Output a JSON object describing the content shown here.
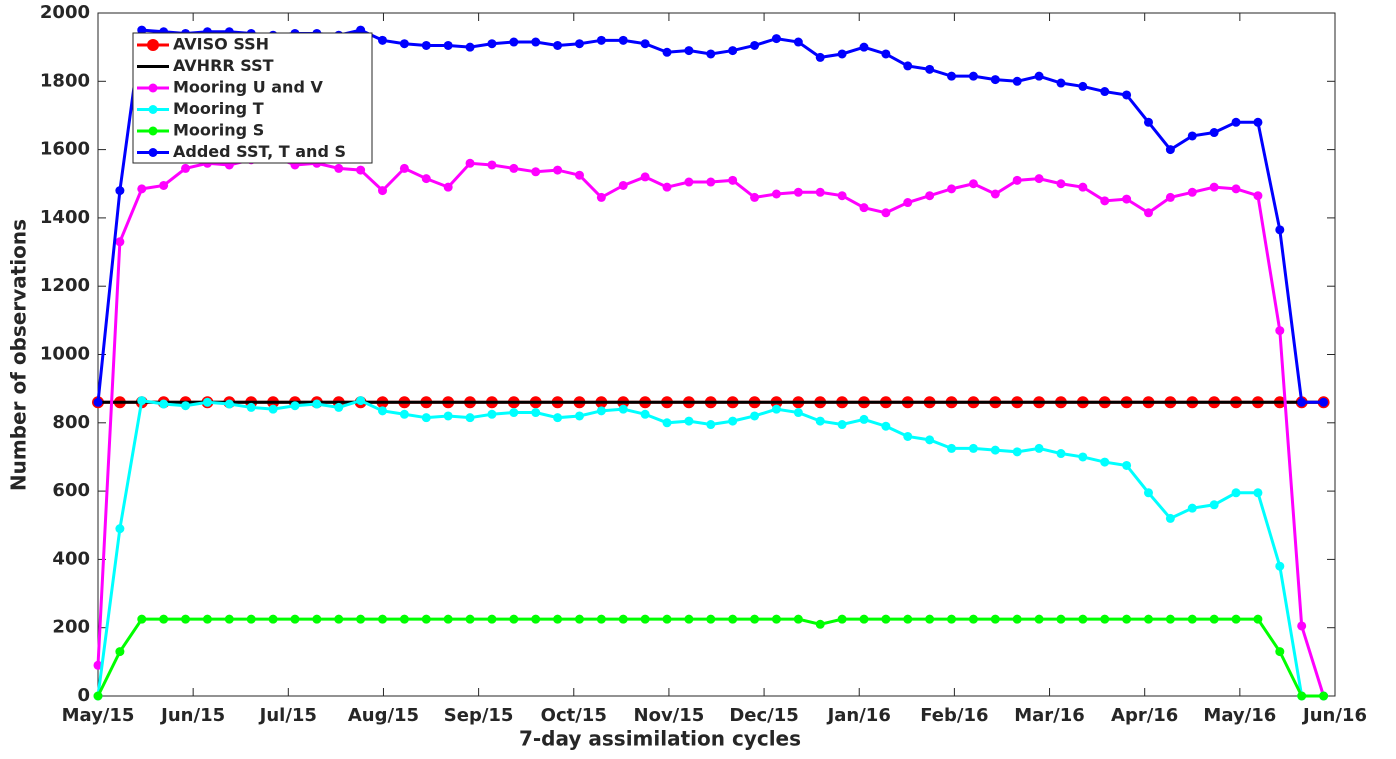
{
  "chart_data": {
    "type": "line",
    "x_label": "7-day assimilation cycles",
    "y_label": "Number of observations",
    "xlim": [
      0,
      13
    ],
    "xticks": [
      {
        "value": 0,
        "label": "May/15"
      },
      {
        "value": 1,
        "label": "Jun/15"
      },
      {
        "value": 2,
        "label": "Jul/15"
      },
      {
        "value": 3,
        "label": "Aug/15"
      },
      {
        "value": 4,
        "label": "Sep/15"
      },
      {
        "value": 5,
        "label": "Oct/15"
      },
      {
        "value": 6,
        "label": "Nov/15"
      },
      {
        "value": 7,
        "label": "Dec/15"
      },
      {
        "value": 8,
        "label": "Jan/16"
      },
      {
        "value": 9,
        "label": "Feb/16"
      },
      {
        "value": 10,
        "label": "Mar/16"
      },
      {
        "value": 11,
        "label": "Apr/16"
      },
      {
        "value": 12,
        "label": "May/16"
      },
      {
        "value": 13,
        "label": "Jun/16"
      }
    ],
    "ylim": [
      0,
      2000
    ],
    "yticks": [
      0,
      200,
      400,
      600,
      800,
      1000,
      1200,
      1400,
      1600,
      1800,
      2000
    ],
    "grid": false,
    "legend": "upper left",
    "x": [
      0,
      0.23,
      0.46,
      0.69,
      0.92,
      1.15,
      1.38,
      1.61,
      1.84,
      2.07,
      2.3,
      2.53,
      2.76,
      2.99,
      3.22,
      3.45,
      3.68,
      3.91,
      4.14,
      4.37,
      4.6,
      4.83,
      5.06,
      5.29,
      5.52,
      5.75,
      5.98,
      6.21,
      6.44,
      6.67,
      6.9,
      7.13,
      7.36,
      7.59,
      7.82,
      8.05,
      8.28,
      8.51,
      8.74,
      8.97,
      9.2,
      9.43,
      9.66,
      9.89,
      10.12,
      10.35,
      10.58,
      10.81,
      11.04,
      11.27,
      11.5,
      11.73,
      11.96,
      12.19,
      12.42,
      12.65,
      12.88
    ],
    "series": [
      {
        "name": "AVISO SSH",
        "color": "#ff0000",
        "marker": true,
        "marker_size": 6,
        "values": [
          860,
          860,
          860,
          860,
          860,
          860,
          860,
          860,
          860,
          860,
          860,
          860,
          860,
          860,
          860,
          860,
          860,
          860,
          860,
          860,
          860,
          860,
          860,
          860,
          860,
          860,
          860,
          860,
          860,
          860,
          860,
          860,
          860,
          860,
          860,
          860,
          860,
          860,
          860,
          860,
          860,
          860,
          860,
          860,
          860,
          860,
          860,
          860,
          860,
          860,
          860,
          860,
          860,
          860,
          860,
          860,
          860
        ]
      },
      {
        "name": "AVHRR SST",
        "color": "#000000",
        "marker": false,
        "marker_size": 0,
        "values": [
          860,
          860,
          860,
          860,
          860,
          860,
          860,
          860,
          860,
          860,
          860,
          860,
          860,
          860,
          860,
          860,
          860,
          860,
          860,
          860,
          860,
          860,
          860,
          860,
          860,
          860,
          860,
          860,
          860,
          860,
          860,
          860,
          860,
          860,
          860,
          860,
          860,
          860,
          860,
          860,
          860,
          860,
          860,
          860,
          860,
          860,
          860,
          860,
          860,
          860,
          860,
          860,
          860,
          860,
          860,
          860,
          860
        ]
      },
      {
        "name": "Mooring U and V",
        "color": "#ff00ff",
        "marker": true,
        "marker_size": 4.5,
        "values": [
          90,
          1330,
          1485,
          1495,
          1545,
          1560,
          1555,
          1570,
          1580,
          1555,
          1560,
          1545,
          1540,
          1480,
          1545,
          1515,
          1490,
          1560,
          1555,
          1545,
          1535,
          1540,
          1525,
          1460,
          1495,
          1520,
          1490,
          1505,
          1505,
          1510,
          1460,
          1470,
          1475,
          1475,
          1465,
          1430,
          1415,
          1445,
          1465,
          1485,
          1500,
          1470,
          1510,
          1515,
          1500,
          1490,
          1450,
          1455,
          1415,
          1460,
          1475,
          1490,
          1485,
          1465,
          1070,
          205,
          0
        ]
      },
      {
        "name": "Mooring T",
        "color": "#00ffff",
        "marker": true,
        "marker_size": 4.5,
        "values": [
          0,
          490,
          865,
          855,
          850,
          860,
          855,
          845,
          840,
          850,
          855,
          845,
          865,
          835,
          825,
          815,
          820,
          815,
          825,
          830,
          830,
          815,
          820,
          835,
          840,
          825,
          800,
          805,
          795,
          805,
          820,
          840,
          830,
          805,
          795,
          810,
          790,
          760,
          750,
          725,
          725,
          720,
          715,
          725,
          710,
          700,
          685,
          675,
          595,
          520,
          550,
          560,
          595,
          595,
          380,
          0,
          0
        ]
      },
      {
        "name": "Mooring S",
        "color": "#00ff00",
        "marker": true,
        "marker_size": 4.5,
        "values": [
          0,
          130,
          225,
          225,
          225,
          225,
          225,
          225,
          225,
          225,
          225,
          225,
          225,
          225,
          225,
          225,
          225,
          225,
          225,
          225,
          225,
          225,
          225,
          225,
          225,
          225,
          225,
          225,
          225,
          225,
          225,
          225,
          225,
          210,
          225,
          225,
          225,
          225,
          225,
          225,
          225,
          225,
          225,
          225,
          225,
          225,
          225,
          225,
          225,
          225,
          225,
          225,
          225,
          225,
          130,
          0,
          0
        ]
      },
      {
        "name": "Added SST, T and S",
        "color": "#0000ff",
        "marker": true,
        "marker_size": 4.5,
        "values": [
          860,
          1480,
          1950,
          1945,
          1940,
          1945,
          1945,
          1940,
          1935,
          1940,
          1940,
          1935,
          1950,
          1920,
          1910,
          1905,
          1905,
          1900,
          1910,
          1915,
          1915,
          1905,
          1910,
          1920,
          1920,
          1910,
          1885,
          1890,
          1880,
          1890,
          1905,
          1925,
          1915,
          1870,
          1880,
          1900,
          1880,
          1845,
          1835,
          1815,
          1815,
          1805,
          1800,
          1815,
          1795,
          1785,
          1770,
          1760,
          1680,
          1600,
          1640,
          1650,
          1680,
          1680,
          1365,
          860,
          860
        ]
      }
    ]
  }
}
